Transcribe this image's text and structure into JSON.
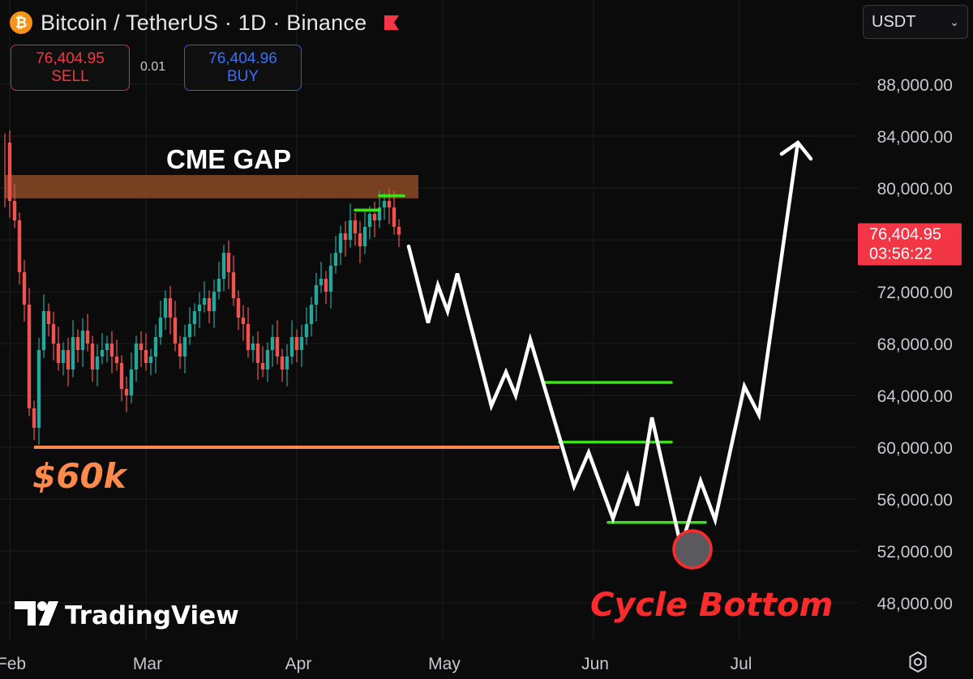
{
  "header": {
    "coin_symbol": "₿",
    "title": "Bitcoin / TetherUS · 1D · Binance",
    "flag_icon": "flag-icon"
  },
  "trade": {
    "sell_price": "76,404.95",
    "sell_label": "SELL",
    "spread": "0.01",
    "buy_price": "76,404.96",
    "buy_label": "BUY"
  },
  "currency_select": {
    "value": "USDT"
  },
  "colors": {
    "up": "#26a69a",
    "down": "#ef5350",
    "cme_gap": "#8a4a26",
    "support": "#ff8a4c",
    "green_level": "#3ee01e",
    "projection": "#ffffff",
    "cycle_bottom": "#ff2b2b",
    "price_tag": "#f23645"
  },
  "chart_data": {
    "type": "candlestick",
    "symbol": "Bitcoin / TetherUS",
    "interval": "1D",
    "exchange": "Binance",
    "y_axis": {
      "ticks": [
        88000,
        84000,
        80000,
        76000,
        72000,
        68000,
        64000,
        60000,
        56000,
        52000,
        48000
      ],
      "tick_labels": [
        "88,000.00",
        "84,000.00",
        "80,000.00",
        "76,000.00",
        "72,000.00",
        "68,000.00",
        "64,000.00",
        "60,000.00",
        "56,000.00",
        "52,000.00",
        "48,000.00"
      ],
      "ylim": [
        46500,
        90500
      ]
    },
    "x_axis": {
      "labels": [
        "Feb",
        "Mar",
        "Apr",
        "May",
        "Jun",
        "Jul"
      ],
      "label_days": [
        0,
        28,
        59,
        89,
        120,
        150
      ]
    },
    "grid": true,
    "current_price": {
      "value": 76404.95,
      "label": "76,404.95",
      "countdown": "03:56:22"
    },
    "close_path": [
      [
        -1,
        83500
      ],
      [
        0,
        79000
      ],
      [
        1,
        77500
      ],
      [
        2,
        73500
      ],
      [
        3,
        71000
      ],
      [
        4,
        63000
      ],
      [
        5,
        61500
      ],
      [
        6,
        67500
      ],
      [
        7,
        70500
      ],
      [
        8,
        69500
      ],
      [
        9,
        68000
      ],
      [
        10,
        66500
      ],
      [
        11,
        67500
      ],
      [
        12,
        66000
      ],
      [
        13,
        68500
      ],
      [
        14,
        67500
      ],
      [
        15,
        69000
      ],
      [
        16,
        68000
      ],
      [
        17,
        66000
      ],
      [
        18,
        67000
      ],
      [
        19,
        67500
      ],
      [
        20,
        68000
      ],
      [
        21,
        67000
      ],
      [
        22,
        66500
      ],
      [
        23,
        64500
      ],
      [
        24,
        64000
      ],
      [
        25,
        66000
      ],
      [
        26,
        68000
      ],
      [
        27,
        67500
      ],
      [
        28,
        66500
      ],
      [
        29,
        67000
      ],
      [
        30,
        68500
      ],
      [
        31,
        70000
      ],
      [
        32,
        71500
      ],
      [
        33,
        70000
      ],
      [
        34,
        68000
      ],
      [
        35,
        67000
      ],
      [
        36,
        68500
      ],
      [
        37,
        69500
      ],
      [
        38,
        70500
      ],
      [
        39,
        71000
      ],
      [
        40,
        71500
      ],
      [
        41,
        70500
      ],
      [
        42,
        72000
      ],
      [
        43,
        73000
      ],
      [
        44,
        75000
      ],
      [
        45,
        73500
      ],
      [
        46,
        71500
      ],
      [
        47,
        70000
      ],
      [
        48,
        69500
      ],
      [
        49,
        67500
      ],
      [
        50,
        68000
      ],
      [
        51,
        66500
      ],
      [
        52,
        66000
      ],
      [
        53,
        67500
      ],
      [
        54,
        68500
      ],
      [
        55,
        67000
      ],
      [
        56,
        66000
      ],
      [
        57,
        67000
      ],
      [
        58,
        68500
      ],
      [
        59,
        67500
      ],
      [
        60,
        68500
      ],
      [
        61,
        69500
      ],
      [
        62,
        71000
      ],
      [
        63,
        72500
      ],
      [
        64,
        73000
      ],
      [
        65,
        72000
      ],
      [
        66,
        74000
      ],
      [
        67,
        75000
      ],
      [
        68,
        76500
      ],
      [
        69,
        76000
      ],
      [
        70,
        77500
      ],
      [
        71,
        76500
      ],
      [
        72,
        75500
      ],
      [
        73,
        77000
      ],
      [
        74,
        78000
      ],
      [
        75,
        77500
      ],
      [
        76,
        78500
      ],
      [
        77,
        79000
      ],
      [
        78,
        78500
      ],
      [
        79,
        77000
      ],
      [
        80,
        76400
      ]
    ],
    "annotations": {
      "cme_gap": {
        "label": "CME GAP",
        "x": [
          -1,
          84
        ],
        "y": [
          79200,
          81000
        ]
      },
      "support": {
        "label": "$60k",
        "x": [
          5,
          113
        ],
        "y": 60000
      },
      "top_levels": [
        {
          "x": [
            71,
            76
          ],
          "y": 78300
        },
        {
          "x": [
            76,
            81
          ],
          "y": 79400
        }
      ],
      "green_levels": [
        {
          "x": [
            110,
            136
          ],
          "y": 65000
        },
        {
          "x": [
            113,
            136
          ],
          "y": 60400
        },
        {
          "x": [
            123,
            143
          ],
          "y": 54200
        }
      ],
      "cycle_bottom": {
        "label": "Cycle Bottom",
        "x": 139,
        "y": 52000
      },
      "projection_path": [
        [
          82,
          75500
        ],
        [
          86,
          69600
        ],
        [
          88,
          72500
        ],
        [
          90,
          70500
        ],
        [
          92,
          73400
        ],
        [
          99,
          63200
        ],
        [
          102,
          65800
        ],
        [
          104,
          64000
        ],
        [
          107,
          68300
        ],
        [
          116,
          57000
        ],
        [
          119,
          59600
        ],
        [
          124,
          54500
        ],
        [
          127,
          57800
        ],
        [
          129,
          55500
        ],
        [
          132,
          62300
        ],
        [
          138,
          52300
        ],
        [
          142,
          57400
        ],
        [
          145,
          54400
        ],
        [
          151,
          64700
        ],
        [
          154,
          62500
        ],
        [
          162,
          83500
        ]
      ]
    }
  },
  "branding": {
    "logo_text": "TradingView"
  },
  "settings_icon": "gear-icon"
}
